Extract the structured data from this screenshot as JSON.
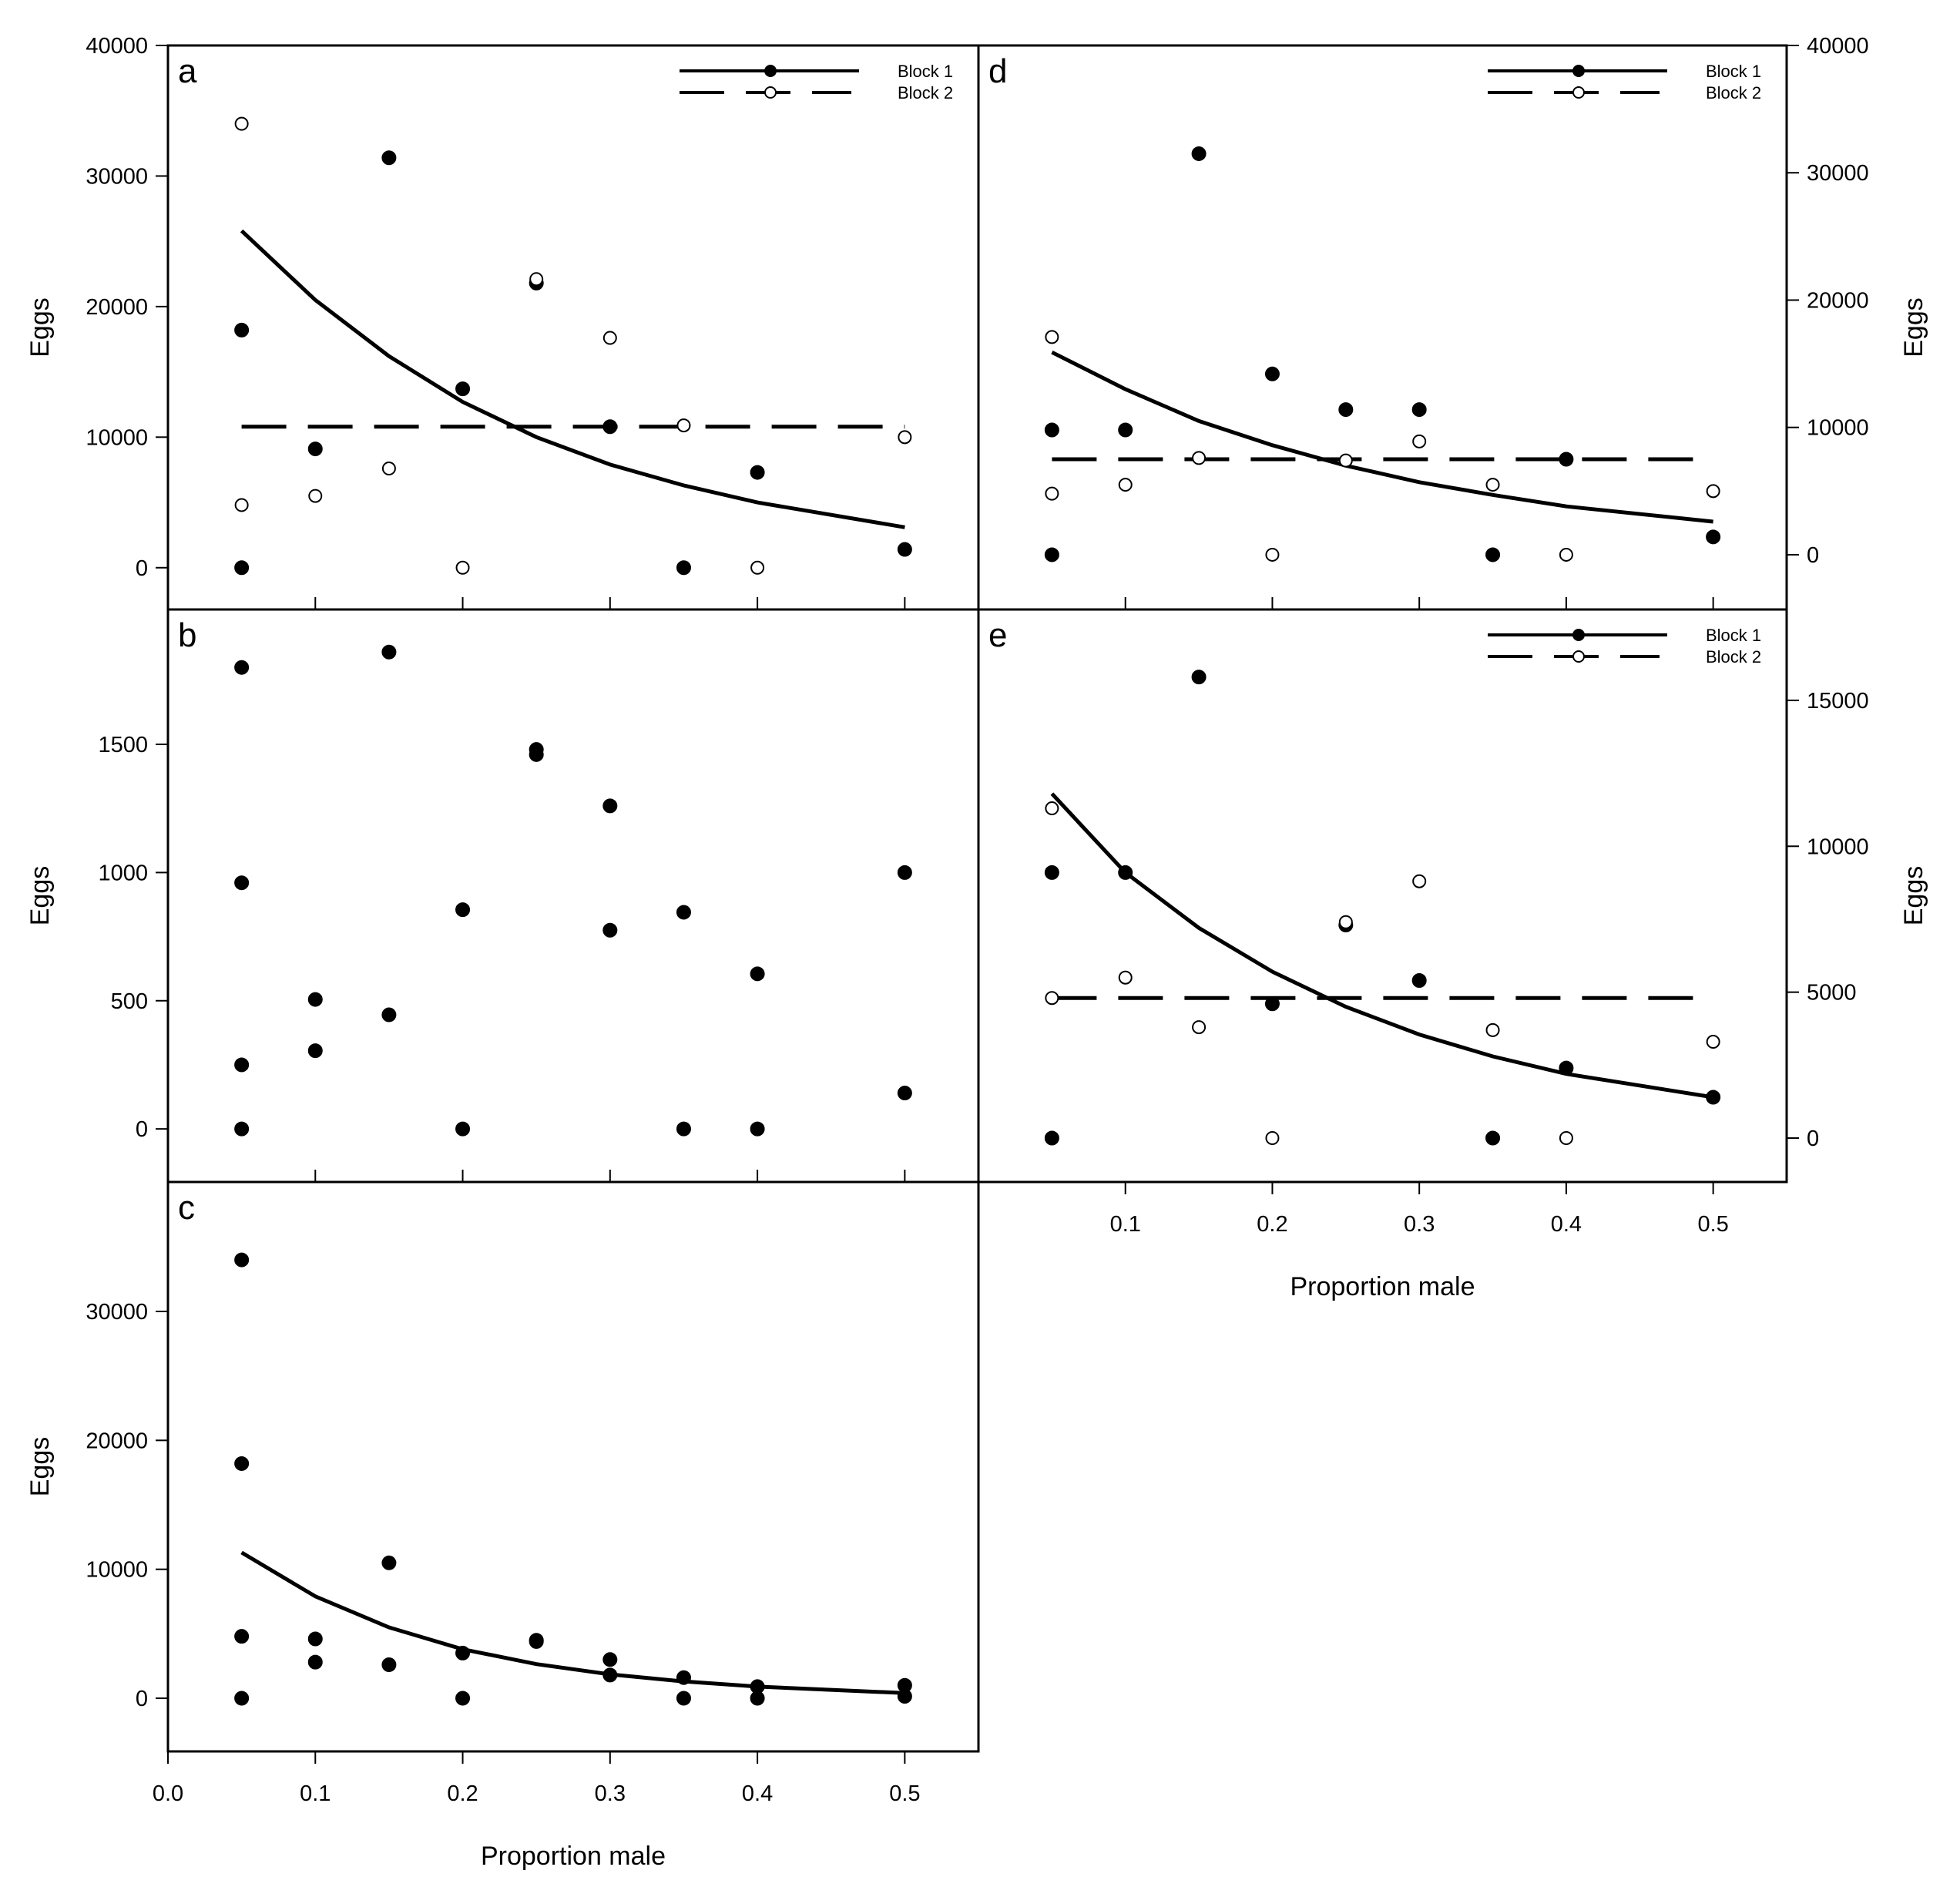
{
  "chart_data": [
    {
      "type": "scatter",
      "panel": "a",
      "ylabel": "Eggs",
      "xlabel": "",
      "xlim": [
        0,
        0.55
      ],
      "ylim": [
        -3200,
        40000
      ],
      "yticks": [
        0,
        10000,
        20000,
        30000,
        40000
      ],
      "ytick_labels": [
        "0",
        "10000",
        "20000",
        "30000",
        "40000"
      ],
      "xticks": [
        0.1,
        0.2,
        0.3,
        0.4,
        0.5
      ],
      "yaxis_side": "left",
      "legend": {
        "position": "top-right",
        "entries": [
          "Block 1",
          "Block 2"
        ]
      },
      "series": [
        {
          "name": "Block 1",
          "marker": "filled",
          "points": [
            [
              0.05,
              18200
            ],
            [
              0.05,
              0
            ],
            [
              0.1,
              9100
            ],
            [
              0.15,
              31400
            ],
            [
              0.2,
              13700
            ],
            [
              0.25,
              21800
            ],
            [
              0.3,
              10800
            ],
            [
              0.35,
              0
            ],
            [
              0.4,
              7300
            ],
            [
              0.5,
              1400
            ]
          ],
          "fit": {
            "style": "solid",
            "x": [
              0.05,
              0.1,
              0.15,
              0.2,
              0.25,
              0.3,
              0.35,
              0.4,
              0.5
            ],
            "y": [
              25800,
              20500,
              16200,
              12700,
              10000,
              7900,
              6300,
              5000,
              3100
            ]
          }
        },
        {
          "name": "Block 2",
          "marker": "open",
          "points": [
            [
              0.05,
              34000
            ],
            [
              0.05,
              4800
            ],
            [
              0.1,
              5500
            ],
            [
              0.15,
              7600
            ],
            [
              0.2,
              0
            ],
            [
              0.25,
              22100
            ],
            [
              0.3,
              17600
            ],
            [
              0.35,
              10900
            ],
            [
              0.4,
              0
            ],
            [
              0.5,
              10000
            ]
          ],
          "fit": {
            "style": "dashed",
            "x": [
              0.05,
              0.5
            ],
            "y": [
              10800,
              10800
            ]
          }
        }
      ]
    },
    {
      "type": "scatter",
      "panel": "b",
      "ylabel": "Eggs",
      "xlabel": "",
      "xlim": [
        0,
        0.55
      ],
      "ylim": [
        -207,
        2026
      ],
      "yticks": [
        0,
        500,
        1000,
        1500
      ],
      "ytick_labels": [
        "0",
        "500",
        "1000",
        "1500"
      ],
      "xticks": [
        0.1,
        0.2,
        0.3,
        0.4,
        0.5
      ],
      "yaxis_side": "left",
      "series": [
        {
          "name": "Points",
          "marker": "filled",
          "points": [
            [
              0.05,
              1800
            ],
            [
              0.05,
              960
            ],
            [
              0.05,
              250
            ],
            [
              0.05,
              0
            ],
            [
              0.1,
              505
            ],
            [
              0.1,
              305
            ],
            [
              0.15,
              1860
            ],
            [
              0.15,
              445
            ],
            [
              0.2,
              855
            ],
            [
              0.2,
              0
            ],
            [
              0.25,
              1480
            ],
            [
              0.25,
              1460
            ],
            [
              0.3,
              1260
            ],
            [
              0.3,
              775
            ],
            [
              0.35,
              845
            ],
            [
              0.35,
              0
            ],
            [
              0.4,
              605
            ],
            [
              0.4,
              0
            ],
            [
              0.5,
              1000
            ],
            [
              0.5,
              140
            ]
          ]
        }
      ]
    },
    {
      "type": "scatter",
      "panel": "c",
      "ylabel": "Eggs",
      "xlabel": "Proportion male",
      "xlim": [
        0,
        0.55
      ],
      "ylim": [
        -4124,
        40040
      ],
      "yticks": [
        0,
        10000,
        20000,
        30000
      ],
      "ytick_labels": [
        "0",
        "10000",
        "20000",
        "30000"
      ],
      "xticks": [
        0,
        0.1,
        0.2,
        0.3,
        0.4,
        0.5
      ],
      "xtick_labels": [
        "0.0",
        "0.1",
        "0.2",
        "0.3",
        "0.4",
        "0.5"
      ],
      "yaxis_side": "left",
      "series": [
        {
          "name": "Points",
          "marker": "filled",
          "points": [
            [
              0.05,
              34000
            ],
            [
              0.05,
              18200
            ],
            [
              0.05,
              4800
            ],
            [
              0.05,
              0
            ],
            [
              0.1,
              4600
            ],
            [
              0.1,
              2800
            ],
            [
              0.15,
              10500
            ],
            [
              0.15,
              2600
            ],
            [
              0.2,
              3500
            ],
            [
              0.2,
              0
            ],
            [
              0.25,
              4500
            ],
            [
              0.25,
              4400
            ],
            [
              0.3,
              3000
            ],
            [
              0.3,
              1800
            ],
            [
              0.35,
              1600
            ],
            [
              0.35,
              0
            ],
            [
              0.4,
              900
            ],
            [
              0.4,
              0
            ],
            [
              0.5,
              1000
            ],
            [
              0.5,
              150
            ]
          ],
          "fit": {
            "style": "solid",
            "x": [
              0.05,
              0.1,
              0.15,
              0.2,
              0.25,
              0.3,
              0.35,
              0.4,
              0.5
            ],
            "y": [
              11300,
              7900,
              5500,
              3800,
              2650,
              1850,
              1300,
              900,
              400
            ]
          }
        }
      ]
    },
    {
      "type": "scatter",
      "panel": "d",
      "ylabel": "Eggs",
      "xlabel": "",
      "xlim": [
        0,
        0.55
      ],
      "ylim": [
        -4300,
        40000
      ],
      "yticks": [
        0,
        10000,
        20000,
        30000,
        40000
      ],
      "ytick_labels": [
        "0",
        "10000",
        "20000",
        "30000",
        "40000"
      ],
      "xticks": [
        0.1,
        0.2,
        0.3,
        0.4,
        0.5
      ],
      "yaxis_side": "right",
      "legend": {
        "position": "top-right",
        "entries": [
          "Block 1",
          "Block 2"
        ]
      },
      "series": [
        {
          "name": "Block 1",
          "marker": "filled",
          "points": [
            [
              0.05,
              9800
            ],
            [
              0.05,
              0
            ],
            [
              0.1,
              9800
            ],
            [
              0.15,
              31500
            ],
            [
              0.2,
              14200
            ],
            [
              0.25,
              11400
            ],
            [
              0.3,
              11400
            ],
            [
              0.35,
              0
            ],
            [
              0.4,
              7500
            ],
            [
              0.5,
              1400
            ]
          ],
          "fit": {
            "style": "solid",
            "x": [
              0.05,
              0.1,
              0.15,
              0.2,
              0.25,
              0.3,
              0.35,
              0.4,
              0.5
            ],
            "y": [
              15900,
              13000,
              10500,
              8600,
              7000,
              5700,
              4700,
              3800,
              2600
            ]
          }
        },
        {
          "name": "Block 2",
          "marker": "open",
          "points": [
            [
              0.05,
              17100
            ],
            [
              0.05,
              4800
            ],
            [
              0.1,
              5500
            ],
            [
              0.15,
              7600
            ],
            [
              0.2,
              0
            ],
            [
              0.25,
              7400
            ],
            [
              0.3,
              8900
            ],
            [
              0.35,
              5500
            ],
            [
              0.4,
              0
            ],
            [
              0.5,
              5000
            ]
          ],
          "fit": {
            "style": "dashed",
            "x": [
              0.05,
              0.5
            ],
            "y": [
              7500,
              7500
            ]
          }
        }
      ]
    },
    {
      "type": "scatter",
      "panel": "e",
      "ylabel": "Eggs",
      "xlabel": "Proportion male",
      "xlim": [
        0,
        0.55
      ],
      "ylim": [
        -1505,
        18114
      ],
      "yticks": [
        0,
        5000,
        10000,
        15000
      ],
      "ytick_labels": [
        "0",
        "5000",
        "10000",
        "15000"
      ],
      "xticks": [
        0.1,
        0.2,
        0.3,
        0.4,
        0.5
      ],
      "xtick_labels": [
        "0.1",
        "0.2",
        "0.3",
        "0.4",
        "0.5"
      ],
      "yaxis_side": "right",
      "legend": {
        "position": "top-right",
        "entries": [
          "Block 1",
          "Block 2"
        ]
      },
      "series": [
        {
          "name": "Block 1",
          "marker": "filled",
          "points": [
            [
              0.05,
              9100
            ],
            [
              0.05,
              0
            ],
            [
              0.1,
              9100
            ],
            [
              0.15,
              15800
            ],
            [
              0.2,
              4600
            ],
            [
              0.25,
              7300
            ],
            [
              0.3,
              5400
            ],
            [
              0.35,
              0
            ],
            [
              0.4,
              2400
            ],
            [
              0.5,
              1400
            ]
          ],
          "fit": {
            "style": "solid",
            "x": [
              0.05,
              0.1,
              0.15,
              0.2,
              0.25,
              0.3,
              0.35,
              0.4,
              0.5
            ],
            "y": [
              11800,
              9100,
              7200,
              5700,
              4500,
              3550,
              2800,
              2200,
              1400
            ]
          }
        },
        {
          "name": "Block 2",
          "marker": "open",
          "points": [
            [
              0.05,
              11300
            ],
            [
              0.05,
              4800
            ],
            [
              0.1,
              5500
            ],
            [
              0.15,
              3800
            ],
            [
              0.2,
              0
            ],
            [
              0.25,
              7400
            ],
            [
              0.3,
              8800
            ],
            [
              0.35,
              3700
            ],
            [
              0.4,
              0
            ],
            [
              0.5,
              3300
            ]
          ],
          "fit": {
            "style": "dashed",
            "x": [
              0.05,
              0.5
            ],
            "y": [
              4800,
              4800
            ]
          }
        }
      ]
    }
  ]
}
